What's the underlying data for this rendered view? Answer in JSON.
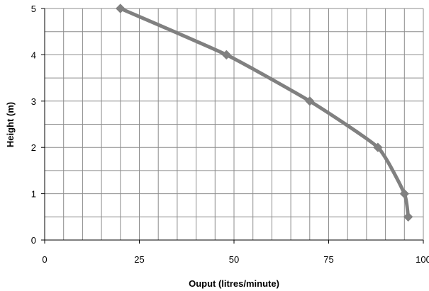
{
  "chart_data": {
    "type": "line",
    "title": "",
    "xlabel": "Ouput (litres/minute)",
    "ylabel": "Height (m)",
    "xlim": [
      0,
      100
    ],
    "ylim": [
      0,
      5
    ],
    "x_ticks": [
      0,
      25,
      50,
      75,
      100
    ],
    "y_ticks": [
      0,
      1,
      2,
      3,
      4,
      5
    ],
    "x_minor_grid_step": 5,
    "y_minor_grid_step": 0.5,
    "grid": true,
    "legend": "none",
    "smooth": true,
    "marker": "diamond",
    "colors": {
      "series": "#808080",
      "grid": "#8c8c8c",
      "axis": "#000000"
    },
    "series": [
      {
        "x": [
          20,
          48,
          70,
          88,
          95,
          96
        ],
        "y": [
          5,
          4,
          3,
          2,
          1,
          0.5
        ]
      }
    ]
  }
}
